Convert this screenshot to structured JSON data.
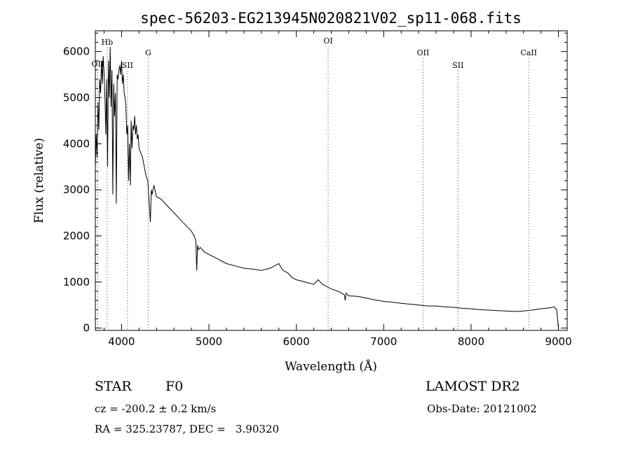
{
  "chart_data": {
    "type": "line",
    "title": "spec-56203-EG213945N020821V02_sp11-068.fits",
    "xlabel": "Wavelength (Å)",
    "ylabel": "Flux (relative)",
    "xlim": [
      3700,
      9100
    ],
    "ylim": [
      -50,
      6450
    ],
    "x_ticks": [
      4000,
      5000,
      6000,
      7000,
      8000,
      9000
    ],
    "y_ticks": [
      0,
      1000,
      2000,
      3000,
      4000,
      5000,
      6000
    ],
    "grid": false,
    "legend": "none",
    "series": [
      {
        "x": [
          3700,
          3710,
          3720,
          3730,
          3740,
          3750,
          3760,
          3770,
          3780,
          3790,
          3800,
          3810,
          3820,
          3830,
          3840,
          3850,
          3860,
          3870,
          3880,
          3890,
          3900,
          3910,
          3920,
          3930,
          3940,
          3950,
          3960,
          3970,
          3980,
          3990,
          4000,
          4010,
          4020,
          4030,
          4040,
          4050,
          4060,
          4070,
          4080,
          4090,
          4100,
          4110,
          4120,
          4130,
          4140,
          4150,
          4160,
          4170,
          4180,
          4190,
          4200,
          4220,
          4240,
          4260,
          4280,
          4300,
          4320,
          4330,
          4340,
          4350,
          4370,
          4400,
          4450,
          4500,
          4550,
          4600,
          4650,
          4700,
          4750,
          4800,
          4830,
          4850,
          4860,
          4870,
          4880,
          4900,
          4950,
          5000,
          5100,
          5200,
          5300,
          5400,
          5500,
          5600,
          5700,
          5750,
          5800,
          5830,
          5850,
          5900,
          5950,
          6000,
          6100,
          6200,
          6250,
          6300,
          6400,
          6500,
          6550,
          6560,
          6570,
          6600,
          6700,
          6800,
          6900,
          7000,
          7100,
          7200,
          7300,
          7400,
          7500,
          7600,
          7700,
          7800,
          7900,
          8000,
          8100,
          8200,
          8300,
          8400,
          8500,
          8600,
          8700,
          8800,
          8900,
          8950,
          8980,
          9000
        ],
        "y": [
          3500,
          4200,
          3700,
          4900,
          4300,
          5400,
          5100,
          5800,
          5300,
          5900,
          5500,
          5000,
          4200,
          5400,
          3500,
          5800,
          5000,
          6100,
          4800,
          5600,
          2900,
          5300,
          4600,
          5100,
          2700,
          5500,
          5400,
          5600,
          5700,
          5500,
          5800,
          5300,
          5500,
          5100,
          5000,
          4800,
          4200,
          4400,
          3200,
          4000,
          3100,
          4500,
          3900,
          4400,
          4300,
          4600,
          4200,
          4400,
          4100,
          4200,
          3900,
          3800,
          3700,
          3500,
          3300,
          3200,
          2600,
          2300,
          3000,
          2900,
          3100,
          2850,
          2800,
          2700,
          2600,
          2500,
          2400,
          2300,
          2200,
          2100,
          2000,
          1900,
          1250,
          1800,
          1700,
          1750,
          1650,
          1600,
          1500,
          1400,
          1350,
          1300,
          1280,
          1250,
          1300,
          1350,
          1400,
          1300,
          1250,
          1200,
          1100,
          1050,
          1000,
          950,
          1050,
          950,
          850,
          780,
          720,
          600,
          760,
          700,
          690,
          650,
          610,
          580,
          560,
          540,
          520,
          500,
          480,
          480,
          460,
          450,
          430,
          420,
          400,
          390,
          380,
          370,
          360,
          370,
          390,
          420,
          440,
          460,
          400,
          0
        ]
      }
    ],
    "annotations": [
      {
        "label": "OII",
        "x": 3727
      },
      {
        "label": "Hb",
        "x": 3835
      },
      {
        "label": "SII",
        "x": 4068
      },
      {
        "label": "G",
        "x": 4305
      },
      {
        "label": "OI",
        "x": 6364
      },
      {
        "label": "OII",
        "x": 7450
      },
      {
        "label": "SII",
        "x": 7850
      },
      {
        "label": "CaII",
        "x": 8660
      }
    ]
  },
  "info": {
    "class": "STAR",
    "subclass": "F0",
    "survey": "LAMOST DR2",
    "cz": "cz = -200.2 ± 0.2 km/s",
    "obs_date": "Obs-Date: 20121002",
    "coords": "RA = 325.23787, DEC =   3.90320"
  }
}
